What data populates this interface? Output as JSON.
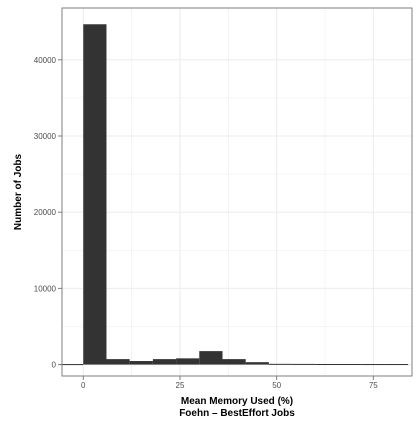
{
  "chart_data": {
    "type": "bar",
    "subtype": "histogram",
    "xlabel": "Mean Memory Used (%)",
    "subtitle": "Foehn – BestEffort Jobs",
    "ylabel": "Number of Jobs",
    "x_ticks": [
      0,
      25,
      50,
      75
    ],
    "y_ticks": [
      0,
      10000,
      20000,
      30000,
      40000
    ],
    "y_tick_labels": [
      "0",
      "10000",
      "20000",
      "30000",
      "40000"
    ],
    "xlim": [
      -5.5,
      85
    ],
    "ylim": [
      -1500,
      46800
    ],
    "bin_width": 6,
    "bins": [
      {
        "start": -6,
        "count": 0
      },
      {
        "start": 0,
        "count": 44600
      },
      {
        "start": 6,
        "count": 650
      },
      {
        "start": 12,
        "count": 400
      },
      {
        "start": 18,
        "count": 650
      },
      {
        "start": 24,
        "count": 750
      },
      {
        "start": 30,
        "count": 1700
      },
      {
        "start": 36,
        "count": 650
      },
      {
        "start": 42,
        "count": 250
      },
      {
        "start": 48,
        "count": 30
      },
      {
        "start": 54,
        "count": 20
      },
      {
        "start": 60,
        "count": 10
      },
      {
        "start": 66,
        "count": 10
      },
      {
        "start": 72,
        "count": 5
      },
      {
        "start": 78,
        "count": 5
      }
    ],
    "bar_color": "#333333",
    "grid": true,
    "background": "#ffffff",
    "grid_color": "#ebebeb"
  }
}
